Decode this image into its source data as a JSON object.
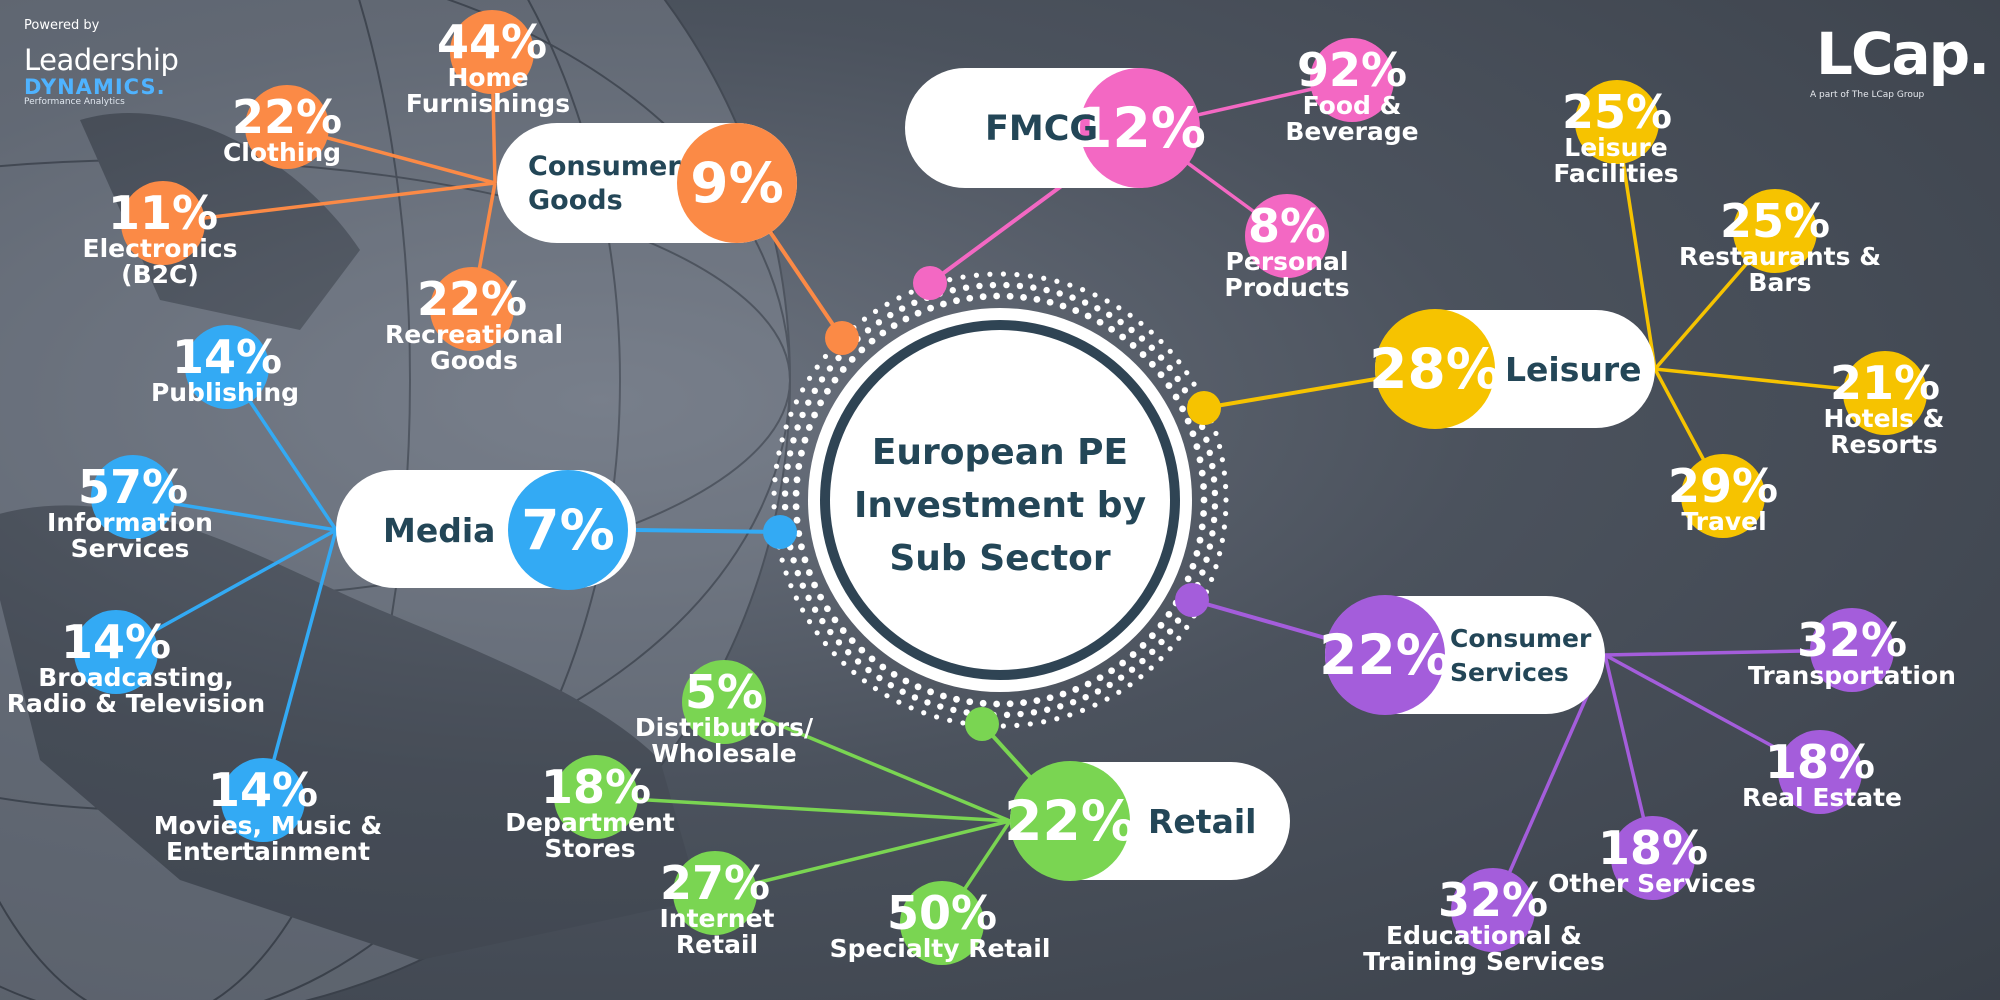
{
  "branding": {
    "powered_by": "Powered by",
    "left_logo_line1": "Leadership",
    "left_logo_line2": "DYNAMICS.",
    "left_logo_line3": "Performance Analytics",
    "right_logo": "LCap.",
    "right_tagline": "A part of The LCap Group"
  },
  "center": {
    "title_lines": [
      "European PE",
      "Investment by",
      "Sub Sector"
    ]
  },
  "sectors": [
    {
      "id": "fmcg",
      "label_lines": [
        "FMCG"
      ],
      "pct": "12%",
      "value": 12,
      "color": "#f368c3",
      "subs": [
        {
          "pct": "92%",
          "value": 92,
          "label_lines": [
            "Food &",
            "Beverage"
          ]
        },
        {
          "pct": "8%",
          "value": 8,
          "label_lines": [
            "Personal",
            "Products"
          ]
        }
      ]
    },
    {
      "id": "consumer-goods",
      "label_lines": [
        "Consumer",
        "Goods"
      ],
      "pct": "9%",
      "value": 9,
      "color": "#fb8a46",
      "subs": [
        {
          "pct": "44%",
          "value": 44,
          "label_lines": [
            "Home",
            "Furnishings"
          ]
        },
        {
          "pct": "22%",
          "value": 22,
          "label_lines": [
            "Clothing"
          ]
        },
        {
          "pct": "11%",
          "value": 11,
          "label_lines": [
            "Electronics",
            "(B2C)"
          ]
        },
        {
          "pct": "22%",
          "value": 22,
          "label_lines": [
            "Recreational",
            "Goods"
          ]
        }
      ]
    },
    {
      "id": "media",
      "label_lines": [
        "Media"
      ],
      "pct": "7%",
      "value": 7,
      "color": "#33aaf4",
      "subs": [
        {
          "pct": "14%",
          "value": 14,
          "label_lines": [
            "Publishing"
          ]
        },
        {
          "pct": "57%",
          "value": 57,
          "label_lines": [
            "Information",
            "Services"
          ]
        },
        {
          "pct": "14%",
          "value": 14,
          "label_lines": [
            "Broadcasting,",
            "Radio & Television"
          ]
        },
        {
          "pct": "14%",
          "value": 14,
          "label_lines": [
            "Movies, Music &",
            "Entertainment"
          ]
        }
      ]
    },
    {
      "id": "retail",
      "label_lines": [
        "Retail"
      ],
      "pct": "22%",
      "value": 22,
      "color": "#7ad552",
      "subs": [
        {
          "pct": "5%",
          "value": 5,
          "label_lines": [
            "Distributors/",
            "Wholesale"
          ]
        },
        {
          "pct": "18%",
          "value": 18,
          "label_lines": [
            "Department",
            "Stores"
          ]
        },
        {
          "pct": "27%",
          "value": 27,
          "label_lines": [
            "Internet",
            "Retail"
          ]
        },
        {
          "pct": "50%",
          "value": 50,
          "label_lines": [
            "Specialty Retail"
          ]
        }
      ]
    },
    {
      "id": "leisure",
      "label_lines": [
        "Leisure"
      ],
      "pct": "28%",
      "value": 28,
      "color": "#f6c300",
      "subs": [
        {
          "pct": "25%",
          "value": 25,
          "label_lines": [
            "Leisure",
            "Facilities"
          ]
        },
        {
          "pct": "25%",
          "value": 25,
          "label_lines": [
            "Restaurants &",
            "Bars"
          ]
        },
        {
          "pct": "21%",
          "value": 21,
          "label_lines": [
            "Hotels &",
            "Resorts"
          ]
        },
        {
          "pct": "29%",
          "value": 29,
          "label_lines": [
            "Travel"
          ]
        }
      ]
    },
    {
      "id": "consumer-services",
      "label_lines": [
        "Consumer",
        "Services"
      ],
      "pct": "22%",
      "value": 22,
      "color": "#a45ddb",
      "subs": [
        {
          "pct": "32%",
          "value": 32,
          "label_lines": [
            "Transportation"
          ]
        },
        {
          "pct": "18%",
          "value": 18,
          "label_lines": [
            "Real Estate"
          ]
        },
        {
          "pct": "18%",
          "value": 18,
          "label_lines": [
            "Other Services"
          ]
        },
        {
          "pct": "32%",
          "value": 32,
          "label_lines": [
            "Educational &",
            "Training Services"
          ]
        }
      ]
    }
  ]
}
